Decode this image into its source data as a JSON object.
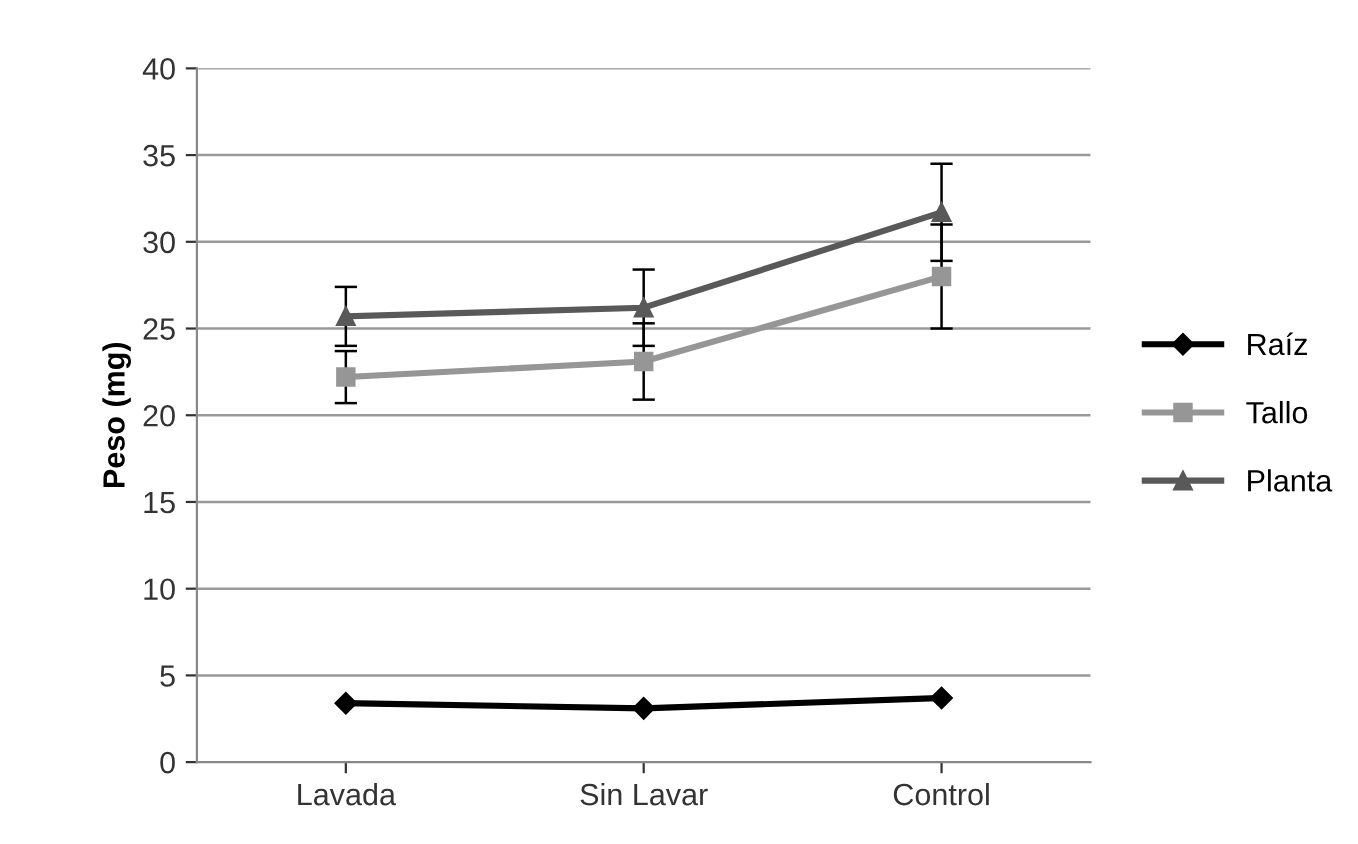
{
  "chart_data": {
    "type": "line",
    "ylabel": "Peso (mg)",
    "categories": [
      "Lavada",
      "Sin Lavar",
      "Control"
    ],
    "series": [
      {
        "name": "Raíz",
        "color": "#000000",
        "marker": "diamond",
        "values": [
          3.4,
          3.1,
          3.7
        ]
      },
      {
        "name": "Tallo",
        "color": "#969696",
        "marker": "square",
        "values": [
          22.2,
          23.1,
          28.0
        ],
        "errors": [
          1.5,
          2.2,
          3.0
        ]
      },
      {
        "name": "Planta",
        "color": "#595959",
        "marker": "triangle",
        "values": [
          25.7,
          26.2,
          31.7
        ],
        "errors": [
          1.7,
          2.2,
          2.8
        ]
      }
    ],
    "ylim": [
      0,
      40
    ],
    "yticks": [
      0,
      5,
      10,
      15,
      20,
      25,
      30,
      35,
      40
    ],
    "grid": "y",
    "legend": "right"
  }
}
